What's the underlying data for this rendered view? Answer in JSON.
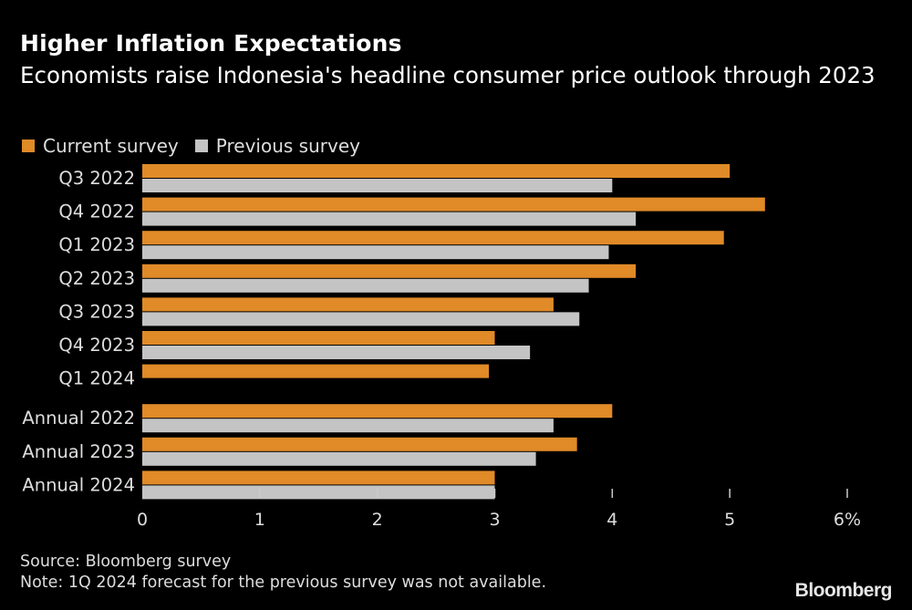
{
  "chart_data": {
    "type": "bar",
    "orientation": "horizontal",
    "title": "Higher Inflation Expectations",
    "subtitle": "Economists raise Indonesia's headline consumer price outlook through 2023",
    "categories": [
      "Q3 2022",
      "Q4 2022",
      "Q1 2023",
      "Q2 2023",
      "Q3 2023",
      "Q4 2023",
      "Q1 2024",
      "Annual 2022",
      "Annual 2023",
      "Annual 2024"
    ],
    "series": [
      {
        "name": "Current survey",
        "color": "#e08a28",
        "values": [
          5.0,
          5.3,
          4.95,
          4.2,
          3.5,
          3.0,
          2.95,
          4.0,
          3.7,
          3.0
        ]
      },
      {
        "name": "Previous survey",
        "color": "#c4c4c4",
        "values": [
          4.0,
          4.2,
          3.97,
          3.8,
          3.72,
          3.3,
          null,
          3.5,
          3.35,
          3.0
        ]
      }
    ],
    "xlabel": "",
    "ylabel": "",
    "xlim": [
      0,
      6
    ],
    "xticks": [
      0,
      1,
      2,
      3,
      4,
      5,
      6
    ],
    "xtick_labels": [
      "0",
      "1",
      "2",
      "3",
      "4",
      "5",
      "6%"
    ],
    "grid": false,
    "legend_position": "top-left"
  },
  "footer": {
    "source": "Source: Bloomberg survey",
    "note": "Note: 1Q 2024 forecast for the previous survey was not available."
  },
  "brand": "Bloomberg"
}
